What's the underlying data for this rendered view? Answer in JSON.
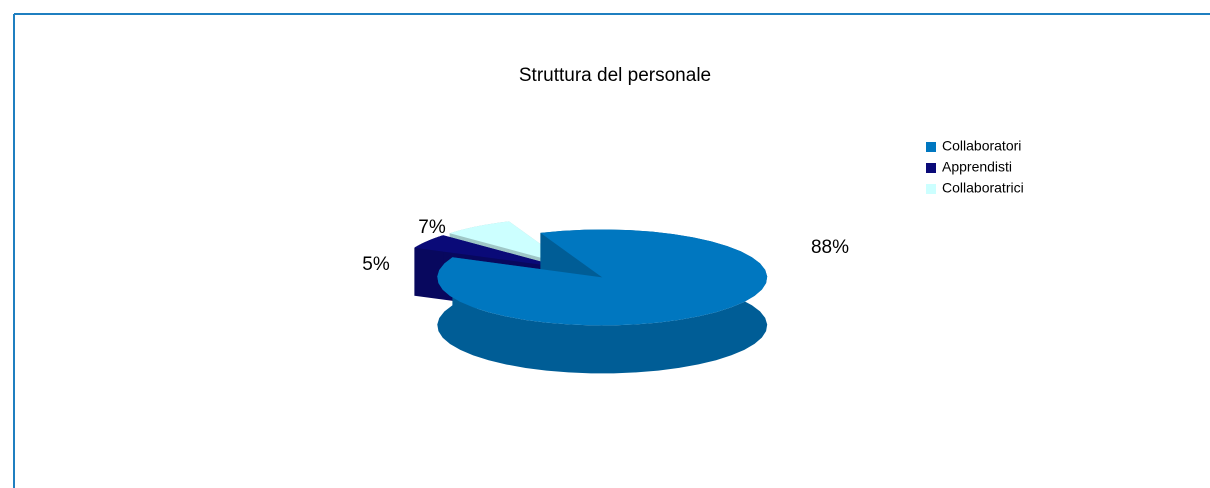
{
  "chart_data": {
    "type": "pie",
    "title": "Struttura del personale",
    "categories": [
      "Collaboratori",
      "Apprendisti",
      "Collaboratrici"
    ],
    "values": [
      88,
      5,
      7
    ],
    "value_labels": [
      "88%",
      "5%",
      "7%"
    ],
    "colors": [
      "#0077c0",
      "#0a0a78",
      "#ccffff"
    ],
    "legend": "right"
  }
}
